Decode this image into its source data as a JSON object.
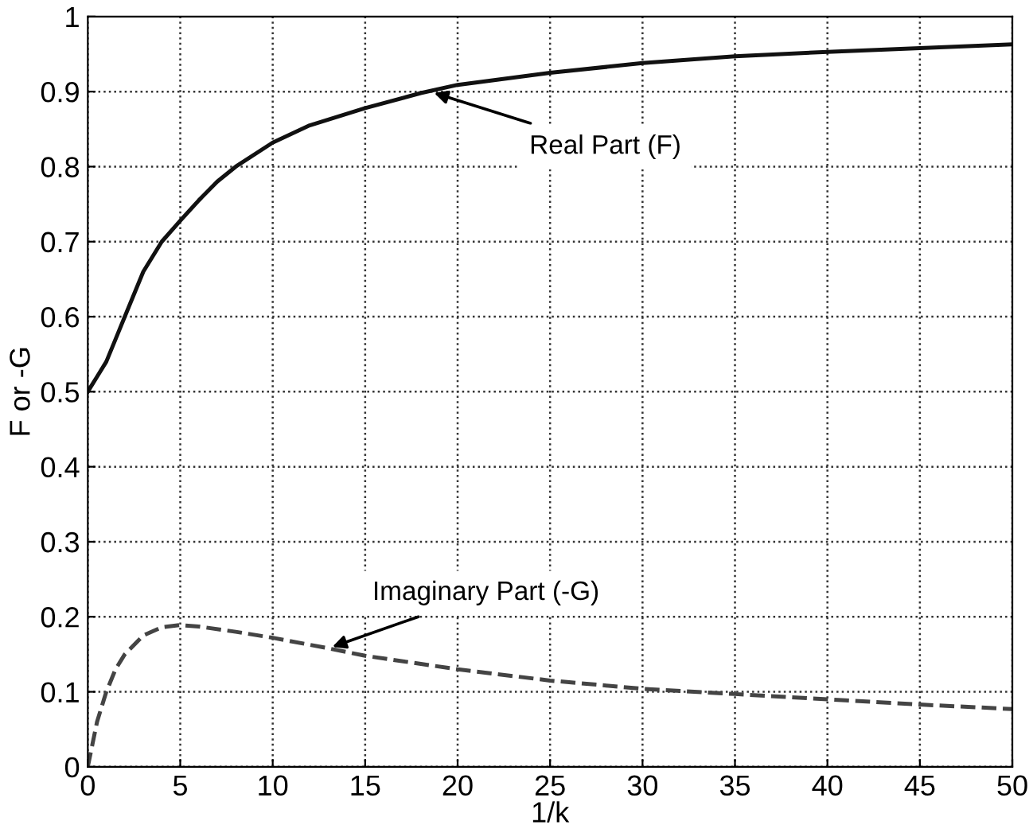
{
  "chart_data": {
    "type": "line",
    "xlabel": "1/k",
    "ylabel": "F or -G",
    "xlim": [
      0,
      50
    ],
    "ylim": [
      0,
      1
    ],
    "xticks": [
      0,
      5,
      10,
      15,
      20,
      25,
      30,
      35,
      40,
      45,
      50
    ],
    "yticks": [
      0,
      0.1,
      0.2,
      0.3,
      0.4,
      0.5,
      0.6,
      0.7,
      0.8,
      0.9,
      1
    ],
    "grid": true,
    "series": [
      {
        "color": "#111111",
        "line_style": "solid",
        "x": [
          0,
          0.25,
          0.5,
          1,
          1.5,
          2,
          3,
          4,
          5,
          6,
          7,
          8,
          10,
          12,
          15,
          18,
          20,
          25,
          30,
          35,
          40,
          45,
          50
        ],
        "values": [
          0.5,
          0.51,
          0.52,
          0.54,
          0.57,
          0.6,
          0.66,
          0.7,
          0.728,
          0.755,
          0.78,
          0.8,
          0.832,
          0.855,
          0.878,
          0.898,
          0.909,
          0.925,
          0.938,
          0.947,
          0.953,
          0.958,
          0.963
        ]
      },
      {
        "color": "#444444",
        "line_style": "dashed",
        "x": [
          0,
          0.25,
          0.5,
          1,
          1.5,
          2,
          3,
          4,
          5,
          6,
          8,
          10,
          13,
          15,
          20,
          25,
          30,
          35,
          40,
          45,
          50
        ],
        "values": [
          0,
          0.03,
          0.06,
          0.1,
          0.13,
          0.15,
          0.175,
          0.186,
          0.189,
          0.187,
          0.18,
          0.172,
          0.158,
          0.148,
          0.13,
          0.115,
          0.104,
          0.097,
          0.09,
          0.083,
          0.077
        ]
      }
    ],
    "annotations": [
      {
        "text": "Real Part (F)",
        "x": 18.5,
        "y": 0.9
      },
      {
        "text": "Imaginary Part (-G)",
        "x": 13,
        "y": 0.158
      }
    ]
  }
}
